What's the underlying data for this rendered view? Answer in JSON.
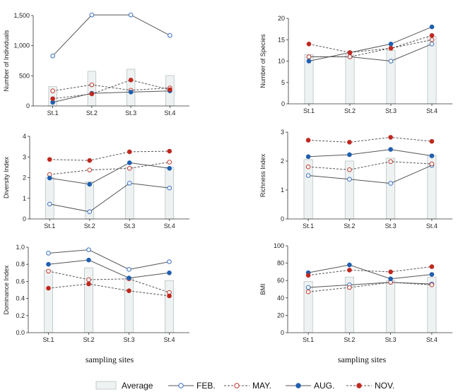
{
  "x_title_left": "sampling  sites",
  "x_title_right": "sampling  sites",
  "legend": [
    {
      "label": "Average",
      "style": "bar"
    },
    {
      "label": "FEB.",
      "style": "solid-open"
    },
    {
      "label": "MAY.",
      "style": "dashed-open"
    },
    {
      "label": "AUG.",
      "style": "solid-filled"
    },
    {
      "label": "NOV.",
      "style": "dashed-filled"
    }
  ],
  "colors": {
    "feb": "#3a6fc4",
    "may": "#c0392b",
    "aug": "#1f5fb0",
    "nov": "#c0281f",
    "line": "#555555",
    "bar_fill": "#eef2f2",
    "bar_stroke": "#b9c2c2"
  },
  "chart_data": [
    {
      "id": "individuals",
      "type": "line",
      "ylabel": "Number of Individuals",
      "categories": [
        "St.1",
        "St.2",
        "St.3",
        "St.4"
      ],
      "ylim": [
        0,
        1500
      ],
      "yticks": [
        0,
        500,
        1000,
        1500
      ],
      "ytick_labels": [
        "0",
        "500",
        "1,000",
        "1,500"
      ],
      "average": [
        320,
        575,
        610,
        505
      ],
      "series": [
        {
          "name": "FEB.",
          "values": [
            830,
            1510,
            1510,
            1170
          ]
        },
        {
          "name": "MAY.",
          "values": [
            250,
            350,
            260,
            300
          ]
        },
        {
          "name": "AUG.",
          "values": [
            60,
            210,
            230,
            250
          ]
        },
        {
          "name": "NOV.",
          "values": [
            120,
            200,
            430,
            270
          ]
        }
      ]
    },
    {
      "id": "species",
      "type": "line",
      "ylabel": "Number of Species",
      "categories": [
        "St.1",
        "St.2",
        "St.3",
        "St.4"
      ],
      "ylim": [
        0,
        20
      ],
      "yticks": [
        0,
        5,
        10,
        15,
        20
      ],
      "ytick_labels": [
        "0",
        "5",
        "10",
        "15",
        "20"
      ],
      "average": [
        11.5,
        11.5,
        12.5,
        15.8
      ],
      "series": [
        {
          "name": "FEB.",
          "values": [
            11,
            11,
            10,
            14
          ]
        },
        {
          "name": "MAY.",
          "values": [
            11,
            11,
            13,
            15
          ]
        },
        {
          "name": "AUG.",
          "values": [
            10,
            12,
            14,
            18
          ]
        },
        {
          "name": "NOV.",
          "values": [
            14,
            12,
            13,
            16
          ]
        }
      ]
    },
    {
      "id": "diversity",
      "type": "line",
      "ylabel": "Diversity Index",
      "categories": [
        "St.1",
        "St.2",
        "St.3",
        "St.4"
      ],
      "ylim": [
        0,
        4
      ],
      "yticks": [
        0,
        1,
        2,
        3,
        4
      ],
      "ytick_labels": [
        "0",
        "1",
        "2",
        "3",
        "4"
      ],
      "average": [
        2.0,
        1.8,
        2.5,
        2.5
      ],
      "series": [
        {
          "name": "FEB.",
          "values": [
            0.72,
            0.35,
            1.73,
            1.5
          ]
        },
        {
          "name": "MAY.",
          "values": [
            2.15,
            2.37,
            2.45,
            2.75
          ]
        },
        {
          "name": "AUG.",
          "values": [
            1.98,
            1.68,
            2.72,
            2.45
          ]
        },
        {
          "name": "NOV.",
          "values": [
            2.88,
            2.83,
            3.25,
            3.28
          ]
        }
      ]
    },
    {
      "id": "richness",
      "type": "line",
      "ylabel": "Richness Index",
      "categories": [
        "St.1",
        "St.2",
        "St.3",
        "St.4"
      ],
      "ylim": [
        0,
        3
      ],
      "yticks": [
        0,
        1,
        2,
        3
      ],
      "ytick_labels": [
        "0",
        "1",
        "2",
        "3"
      ],
      "average": [
        2.05,
        2.0,
        2.1,
        2.2
      ],
      "series": [
        {
          "name": "FEB.",
          "values": [
            1.5,
            1.37,
            1.23,
            1.85
          ]
        },
        {
          "name": "MAY.",
          "values": [
            1.8,
            1.7,
            1.98,
            1.9
          ]
        },
        {
          "name": "AUG.",
          "values": [
            2.15,
            2.22,
            2.4,
            2.18
          ]
        },
        {
          "name": "NOV.",
          "values": [
            2.72,
            2.65,
            2.82,
            2.68
          ]
        }
      ]
    },
    {
      "id": "dominance",
      "type": "line",
      "ylabel": "Dominance Index",
      "categories": [
        "St.1",
        "St.2",
        "St.3",
        "St.4"
      ],
      "ylim": [
        0,
        1.0
      ],
      "yticks": [
        0,
        0.2,
        0.4,
        0.6,
        0.8,
        1.0
      ],
      "ytick_labels": [
        "0.0",
        "0.2",
        "0.4",
        "0.6",
        "0.8",
        "1.0"
      ],
      "average": [
        0.73,
        0.76,
        0.64,
        0.61
      ],
      "series": [
        {
          "name": "FEB.",
          "values": [
            0.93,
            0.97,
            0.74,
            0.83
          ]
        },
        {
          "name": "MAY.",
          "values": [
            0.72,
            0.62,
            0.63,
            0.47
          ]
        },
        {
          "name": "AUG.",
          "values": [
            0.8,
            0.85,
            0.64,
            0.7
          ]
        },
        {
          "name": "NOV.",
          "values": [
            0.52,
            0.57,
            0.49,
            0.43
          ]
        }
      ]
    },
    {
      "id": "bmi",
      "type": "line",
      "ylabel": "BMI",
      "categories": [
        "St.1",
        "St.2",
        "St.3",
        "St.4"
      ],
      "ylim": [
        0,
        100
      ],
      "yticks": [
        0,
        20,
        40,
        60,
        80,
        100
      ],
      "ytick_labels": [
        "0",
        "20",
        "40",
        "60",
        "80",
        "100"
      ],
      "average": [
        59,
        64,
        60,
        64
      ],
      "series": [
        {
          "name": "FEB.",
          "values": [
            52,
            55,
            58,
            56
          ]
        },
        {
          "name": "MAY.",
          "values": [
            47,
            52,
            58,
            55
          ]
        },
        {
          "name": "AUG.",
          "values": [
            69,
            78,
            62,
            67
          ]
        },
        {
          "name": "NOV.",
          "values": [
            66,
            72,
            70,
            76
          ]
        }
      ]
    }
  ]
}
